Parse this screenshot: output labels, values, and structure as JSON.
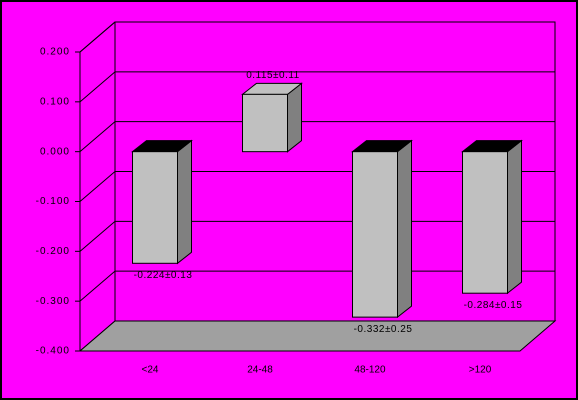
{
  "chart_data": {
    "type": "bar3d",
    "categories": [
      "<24",
      "24-48",
      "48-120",
      ">120"
    ],
    "values": [
      -0.224,
      0.115,
      -0.332,
      -0.284
    ],
    "value_labels": [
      "-0.224±0.13",
      "0.115±0.11",
      "-0.332±0.25",
      "-0.284±0.15"
    ],
    "color": "#c0c0c0",
    "background": "#ff00ff",
    "ylim": [
      -0.4,
      0.2
    ],
    "yticks": [
      {
        "value": -0.4,
        "label": "-0.400"
      },
      {
        "value": -0.3,
        "label": "-0.300"
      },
      {
        "value": -0.2,
        "label": "-0.200"
      },
      {
        "value": -0.1,
        "label": "-0.100"
      },
      {
        "value": 0,
        "label": "0.000"
      },
      {
        "value": 0.1,
        "label": "0.100"
      },
      {
        "value": 0.2,
        "label": "0.200"
      }
    ],
    "grid": true
  }
}
